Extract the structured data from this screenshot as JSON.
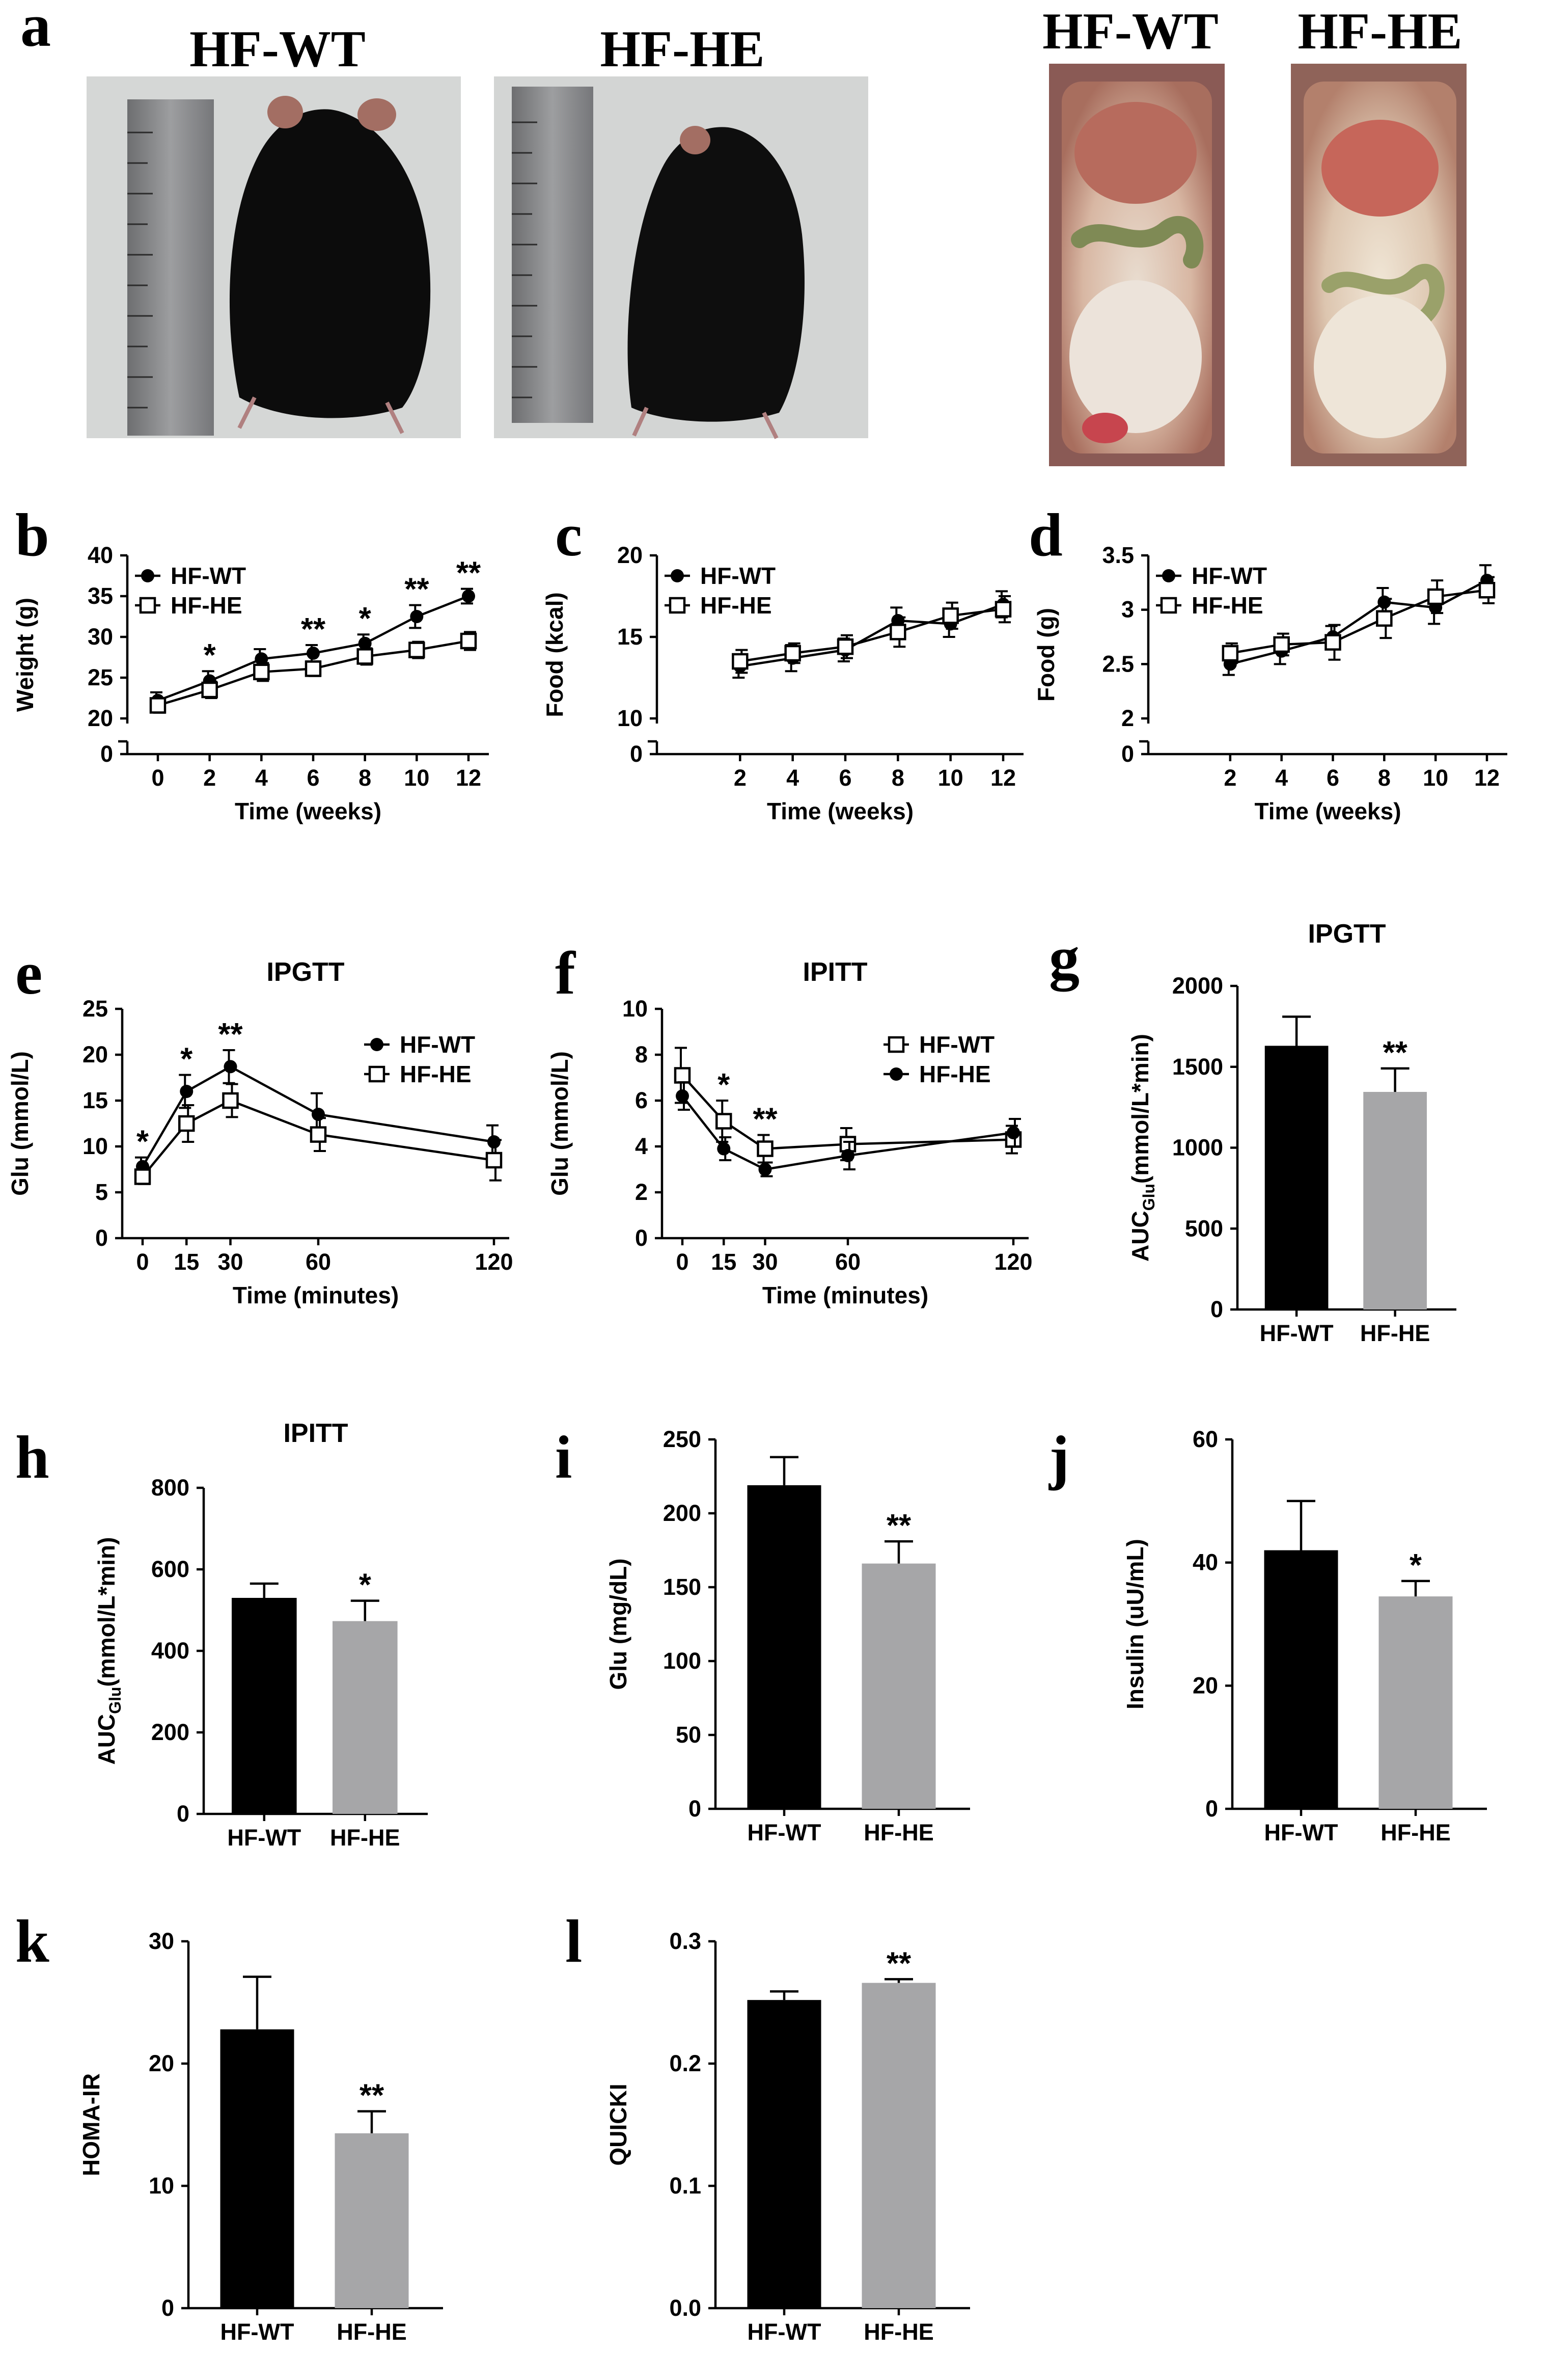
{
  "panel_labels": [
    "a",
    "b",
    "c",
    "d",
    "e",
    "f",
    "g",
    "h",
    "i",
    "j",
    "k",
    "l"
  ],
  "photos": [
    {
      "caption": "HF-WT",
      "subject": "mouse-ruler-photo"
    },
    {
      "caption": "HF-HE",
      "subject": "mouse-ruler-photo"
    },
    {
      "caption": "HF-WT",
      "subject": "abdomen-photo"
    },
    {
      "caption": "HF-HE",
      "subject": "abdomen-photo"
    }
  ],
  "colors": {
    "wt": "#000000",
    "he": "#a6a6a8"
  },
  "chart_data": [
    {
      "id": "b",
      "type": "line",
      "title": "",
      "xlabel": "Time (weeks)",
      "ylabel": "Weight (g)",
      "x": [
        0,
        2,
        4,
        6,
        8,
        10,
        12
      ],
      "ylim": [
        20,
        40
      ],
      "yticks": [
        20,
        25,
        30,
        35,
        40
      ],
      "axis_break": true,
      "break_label": "0",
      "series": [
        {
          "name": "HF-WT",
          "marker": "filled-circle",
          "values": [
            22.2,
            24.6,
            27.3,
            28.0,
            29.2,
            32.5,
            35.0
          ],
          "errors": [
            1.0,
            1.2,
            1.2,
            1.0,
            1.1,
            1.4,
            0.9
          ]
        },
        {
          "name": "HF-HE",
          "marker": "open-square",
          "values": [
            21.6,
            23.5,
            25.7,
            26.1,
            27.6,
            28.4,
            29.5
          ],
          "errors": [
            0.9,
            1.0,
            1.1,
            0.9,
            1.0,
            1.0,
            1.1
          ]
        }
      ],
      "significance": [
        {
          "x": 2,
          "label": "*"
        },
        {
          "x": 6,
          "label": "**"
        },
        {
          "x": 8,
          "label": "*"
        },
        {
          "x": 10,
          "label": "**"
        },
        {
          "x": 12,
          "label": "**"
        }
      ],
      "legend_position": "top-left"
    },
    {
      "id": "c",
      "type": "line",
      "title": "",
      "xlabel": "Time (weeks)",
      "ylabel": "Food (kcal)",
      "x": [
        2,
        4,
        6,
        8,
        10,
        12
      ],
      "ylim": [
        10,
        20
      ],
      "yticks": [
        10,
        15,
        20
      ],
      "axis_break": true,
      "break_label": "0",
      "series": [
        {
          "name": "HF-WT",
          "marker": "filled-circle",
          "values": [
            13.2,
            13.7,
            14.2,
            16.0,
            15.8,
            17.0
          ],
          "errors": [
            0.7,
            0.8,
            0.7,
            0.8,
            0.8,
            0.8
          ]
        },
        {
          "name": "HF-HE",
          "marker": "open-square",
          "values": [
            13.5,
            14.0,
            14.4,
            15.3,
            16.3,
            16.7
          ],
          "errors": [
            0.7,
            0.6,
            0.7,
            0.9,
            0.8,
            0.8
          ]
        }
      ],
      "significance": [],
      "legend_position": "top-left"
    },
    {
      "id": "d",
      "type": "line",
      "title": "",
      "xlabel": "Time (weeks)",
      "ylabel": "Food (g)",
      "x": [
        2,
        4,
        6,
        8,
        10,
        12
      ],
      "ylim": [
        2.0,
        3.5
      ],
      "yticks": [
        2.0,
        2.5,
        3.0,
        3.5
      ],
      "axis_break": true,
      "break_label": "0",
      "series": [
        {
          "name": "HF-WT",
          "marker": "filled-circle",
          "values": [
            2.5,
            2.62,
            2.75,
            3.07,
            3.02,
            3.27
          ],
          "errors": [
            0.1,
            0.12,
            0.1,
            0.13,
            0.15,
            0.14
          ]
        },
        {
          "name": "HF-HE",
          "marker": "open-square",
          "values": [
            2.6,
            2.68,
            2.7,
            2.92,
            3.12,
            3.18
          ],
          "errors": [
            0.09,
            0.1,
            0.16,
            0.18,
            0.15,
            0.12
          ]
        }
      ],
      "significance": [],
      "legend_position": "top-left"
    },
    {
      "id": "e",
      "type": "line",
      "title": "IPGTT",
      "xlabel": "Time (minutes)",
      "ylabel": "Glu (mmol/L)",
      "x": [
        0,
        15,
        30,
        60,
        120
      ],
      "ylim": [
        0,
        25
      ],
      "yticks": [
        0,
        5,
        10,
        15,
        20,
        25
      ],
      "axis_break": false,
      "series": [
        {
          "name": "HF-WT",
          "marker": "filled-circle",
          "values": [
            7.8,
            16.0,
            18.7,
            13.5,
            10.5
          ],
          "errors": [
            1.0,
            1.8,
            1.8,
            2.3,
            1.8
          ]
        },
        {
          "name": "HF-HE",
          "marker": "open-square",
          "values": [
            6.7,
            12.5,
            15.0,
            11.3,
            8.5
          ],
          "errors": [
            0.8,
            2.0,
            1.8,
            1.8,
            2.2
          ]
        }
      ],
      "significance": [
        {
          "x": 0,
          "label": "*"
        },
        {
          "x": 15,
          "label": "*"
        },
        {
          "x": 30,
          "label": "**"
        }
      ],
      "legend_position": "top-right"
    },
    {
      "id": "f",
      "type": "line",
      "title": "IPITT",
      "xlabel": "Time (minutes)",
      "ylabel": "Glu (mmol/L)",
      "x": [
        0,
        15,
        30,
        60,
        120
      ],
      "ylim": [
        0,
        10
      ],
      "yticks": [
        0,
        2,
        4,
        6,
        8,
        10
      ],
      "axis_break": false,
      "series": [
        {
          "name": "HF-WT",
          "marker": "open-square",
          "values": [
            7.1,
            5.1,
            3.9,
            4.1,
            4.3
          ],
          "errors": [
            1.2,
            0.9,
            0.6,
            0.7,
            0.6
          ]
        },
        {
          "name": "HF-HE",
          "marker": "filled-circle",
          "values": [
            6.2,
            3.9,
            3.0,
            3.6,
            4.6
          ],
          "errors": [
            0.6,
            0.5,
            0.3,
            0.6,
            0.6
          ]
        }
      ],
      "significance": [
        {
          "x": 15,
          "label": "*"
        },
        {
          "x": 30,
          "label": "**"
        }
      ],
      "legend_position": "top-right"
    },
    {
      "id": "g",
      "type": "bar",
      "title": "IPGTT",
      "ylabel": "AUC",
      "ylabel_sub": "Glu",
      "ylabel_unit": "(mmol/L*min)",
      "categories": [
        "HF-WT",
        "HF-HE"
      ],
      "values": [
        1630,
        1345
      ],
      "errors": [
        180,
        145
      ],
      "ylim": [
        0,
        2000
      ],
      "yticks": [
        0,
        500,
        1000,
        1500,
        2000
      ],
      "significance": [
        {
          "bar": 1,
          "label": "**"
        }
      ]
    },
    {
      "id": "h",
      "type": "bar",
      "title": "IPITT",
      "ylabel": "AUC",
      "ylabel_sub": "Glu",
      "ylabel_unit": "(mmol/L*min)",
      "categories": [
        "HF-WT",
        "HF-HE"
      ],
      "values": [
        530,
        473
      ],
      "errors": [
        35,
        50
      ],
      "ylim": [
        0,
        800
      ],
      "yticks": [
        0,
        200,
        400,
        600,
        800
      ],
      "significance": [
        {
          "bar": 1,
          "label": "*"
        }
      ]
    },
    {
      "id": "i",
      "type": "bar",
      "title": "",
      "ylabel": "Glu (mg/dL)",
      "categories": [
        "HF-WT",
        "HF-HE"
      ],
      "values": [
        219,
        166
      ],
      "errors": [
        19,
        15
      ],
      "ylim": [
        0,
        250
      ],
      "yticks": [
        0,
        50,
        100,
        150,
        200,
        250
      ],
      "significance": [
        {
          "bar": 1,
          "label": "**"
        }
      ]
    },
    {
      "id": "j",
      "type": "bar",
      "title": "",
      "ylabel": "Insulin (uU/mL)",
      "categories": [
        "HF-WT",
        "HF-HE"
      ],
      "values": [
        42,
        34.5
      ],
      "errors": [
        8,
        2.5
      ],
      "ylim": [
        0,
        60
      ],
      "yticks": [
        0,
        20,
        40,
        60
      ],
      "significance": [
        {
          "bar": 1,
          "label": "*"
        }
      ]
    },
    {
      "id": "k",
      "type": "bar",
      "title": "",
      "ylabel": "HOMA-IR",
      "categories": [
        "HF-WT",
        "HF-HE"
      ],
      "values": [
        22.8,
        14.3
      ],
      "errors": [
        4.3,
        1.8
      ],
      "ylim": [
        0,
        30
      ],
      "yticks": [
        0,
        10,
        20,
        30
      ],
      "significance": [
        {
          "bar": 1,
          "label": "**"
        }
      ]
    },
    {
      "id": "l",
      "type": "bar",
      "title": "",
      "ylabel": "QUICKI",
      "categories": [
        "HF-WT",
        "HF-HE"
      ],
      "values": [
        0.252,
        0.266
      ],
      "errors": [
        0.007,
        0.003
      ],
      "ylim": [
        0,
        0.3
      ],
      "yticks": [
        0.0,
        0.1,
        0.2,
        0.3
      ],
      "tick_decimals": 1,
      "significance": [
        {
          "bar": 1,
          "label": "**"
        }
      ]
    }
  ]
}
